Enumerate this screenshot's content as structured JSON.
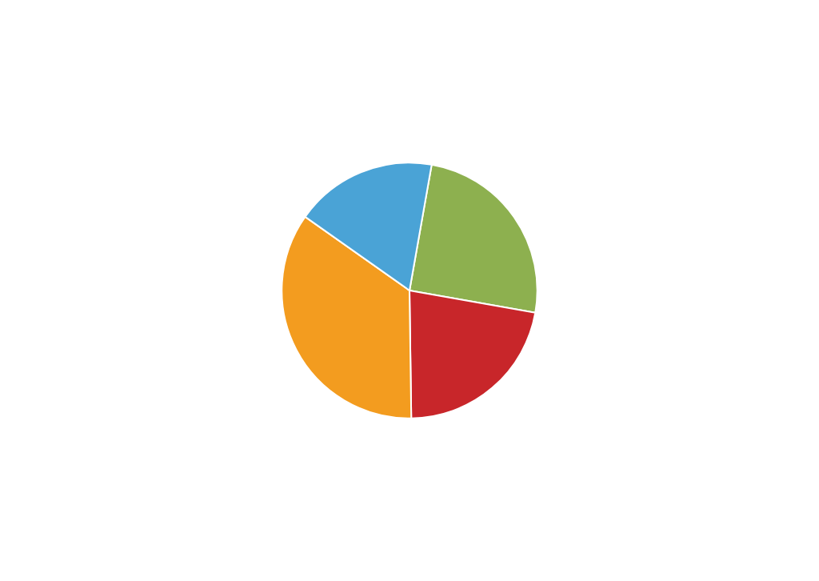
{
  "chart_data": {
    "type": "pie",
    "values": [
      25,
      22,
      35,
      18
    ],
    "colors": [
      "#8db04f",
      "#c8262a",
      "#f39c1f",
      "#4aa3d6"
    ],
    "data_labels": false
  }
}
